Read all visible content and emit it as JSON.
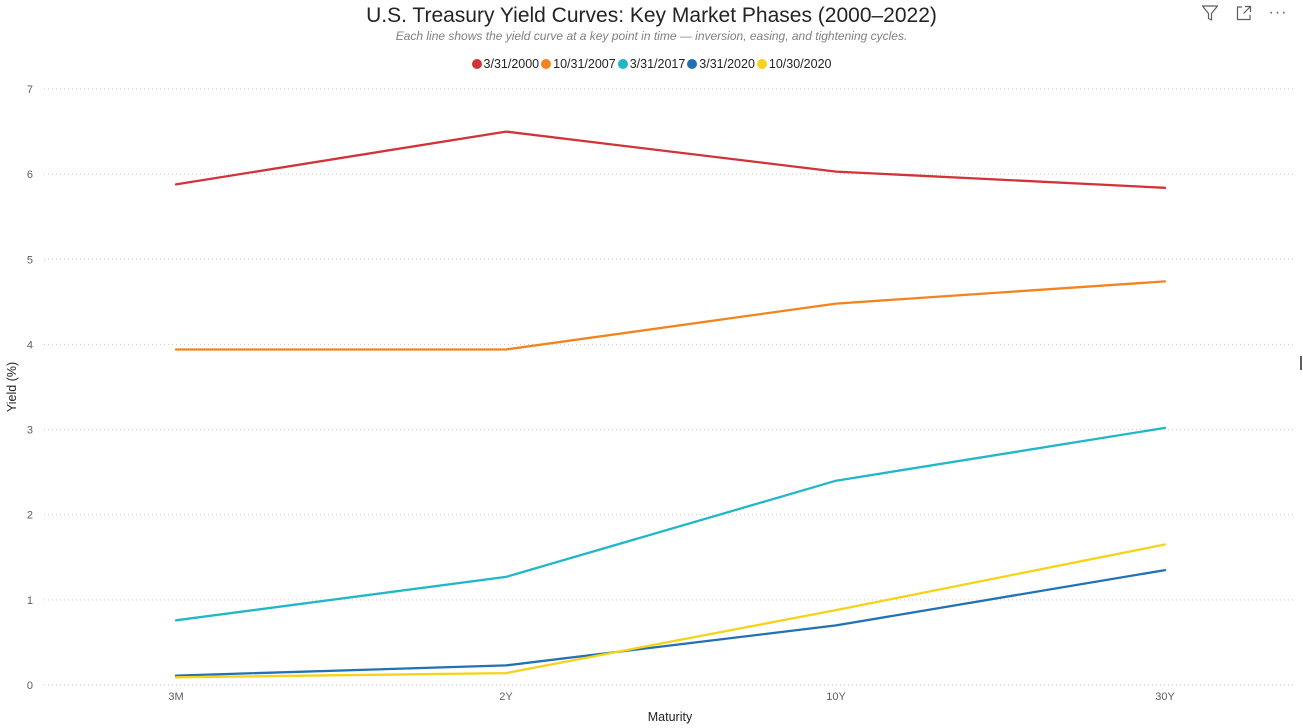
{
  "toolbar": {
    "filter_icon": "filter-icon",
    "focus_icon": "focus-mode-icon",
    "more_label": "···"
  },
  "chart_data": {
    "type": "line",
    "title": "U.S. Treasury Yield Curves: Key Market Phases (2000–2022)",
    "subtitle": "Each line shows the yield curve at a key point in time — inversion, easing, and tightening cycles.",
    "xlabel": "Maturity",
    "ylabel": "Yield (%)",
    "categories": [
      "3M",
      "2Y",
      "10Y",
      "30Y"
    ],
    "ylim": [
      0,
      7
    ],
    "yticks": [
      "0",
      "1",
      "2",
      "3",
      "4",
      "5",
      "6",
      "7"
    ],
    "grid": true,
    "legend_position": "top-center",
    "series": [
      {
        "name": "3/31/2000",
        "color": "#D13438",
        "values": [
          5.88,
          6.5,
          6.03,
          5.84
        ]
      },
      {
        "name": "10/31/2007",
        "color": "#F2831E",
        "values": [
          3.94,
          3.94,
          4.48,
          4.74
        ]
      },
      {
        "name": "3/31/2017",
        "color": "#21B7C9",
        "values": [
          0.76,
          1.27,
          2.4,
          3.02
        ]
      },
      {
        "name": "3/31/2020",
        "color": "#2271B3",
        "values": [
          0.11,
          0.23,
          0.7,
          1.35
        ]
      },
      {
        "name": "10/30/2020",
        "color": "#F5D31A",
        "values": [
          0.09,
          0.14,
          0.88,
          1.65
        ]
      }
    ]
  }
}
